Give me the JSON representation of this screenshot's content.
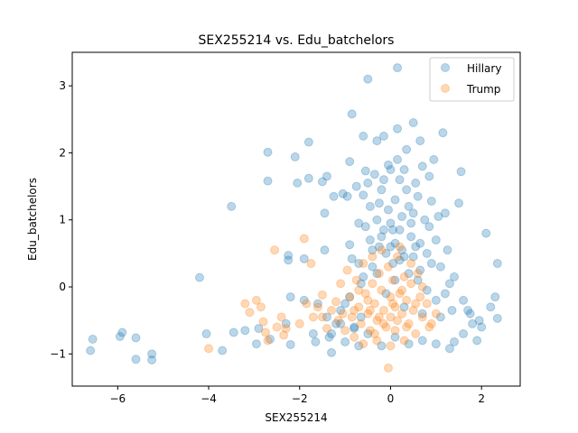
{
  "chart_data": {
    "type": "scatter",
    "title": "SEX255214 vs. Edu_batchelors",
    "xlabel": "SEX255214",
    "ylabel": "Edu_batchelors",
    "xlim": [
      -7.0,
      2.85
    ],
    "ylim": [
      -1.48,
      3.5
    ],
    "xticks": [
      -6,
      -4,
      -2,
      0,
      2
    ],
    "yticks": [
      -1,
      0,
      1,
      2,
      3
    ],
    "legend": "top-right",
    "grid": false,
    "series": [
      {
        "name": "Hillary",
        "color": "#1f77b4",
        "points": [
          [
            -6.6,
            -0.95
          ],
          [
            -6.55,
            -0.78
          ],
          [
            -5.95,
            -0.74
          ],
          [
            -5.9,
            -0.68
          ],
          [
            -5.6,
            -0.76
          ],
          [
            -5.6,
            -1.08
          ],
          [
            -5.25,
            -1.0
          ],
          [
            -5.25,
            -1.09
          ],
          [
            -4.2,
            0.14
          ],
          [
            -4.05,
            -0.7
          ],
          [
            -3.7,
            -0.95
          ],
          [
            -3.5,
            1.2
          ],
          [
            -3.45,
            -0.68
          ],
          [
            -3.2,
            -0.65
          ],
          [
            -2.95,
            -0.85
          ],
          [
            -2.9,
            -0.62
          ],
          [
            -2.7,
            2.01
          ],
          [
            -2.7,
            1.58
          ],
          [
            -2.65,
            -0.78
          ],
          [
            -2.3,
            -0.55
          ],
          [
            -2.25,
            0.47
          ],
          [
            -2.25,
            0.4
          ],
          [
            -2.2,
            -0.86
          ],
          [
            -2.1,
            1.94
          ],
          [
            -2.05,
            1.55
          ],
          [
            -1.9,
            0.42
          ],
          [
            -1.8,
            2.16
          ],
          [
            -1.8,
            1.62
          ],
          [
            -1.7,
            -0.7
          ],
          [
            -1.65,
            -0.82
          ],
          [
            -1.5,
            1.57
          ],
          [
            -1.45,
            1.1
          ],
          [
            -1.45,
            0.55
          ],
          [
            -1.4,
            1.65
          ],
          [
            -1.35,
            -0.75
          ],
          [
            -1.3,
            -0.98
          ],
          [
            -1.25,
            1.35
          ],
          [
            -1.2,
            -0.55
          ],
          [
            -1.1,
            -0.35
          ],
          [
            -1.05,
            1.39
          ],
          [
            -1.0,
            -0.82
          ],
          [
            -0.95,
            1.35
          ],
          [
            -0.9,
            1.87
          ],
          [
            -0.9,
            0.63
          ],
          [
            -0.85,
            2.58
          ],
          [
            -0.85,
            0.42
          ],
          [
            -0.8,
            -0.6
          ],
          [
            -0.75,
            1.5
          ],
          [
            -0.7,
            0.95
          ],
          [
            -0.7,
            -0.88
          ],
          [
            -0.65,
            0.05
          ],
          [
            -0.6,
            2.25
          ],
          [
            -0.6,
            1.37
          ],
          [
            -0.55,
            1.73
          ],
          [
            -0.5,
            3.1
          ],
          [
            -0.5,
            1.55
          ],
          [
            -0.45,
            1.2
          ],
          [
            -0.45,
            0.7
          ],
          [
            -0.4,
            0.3
          ],
          [
            -0.35,
            1.68
          ],
          [
            -0.3,
            2.18
          ],
          [
            -0.3,
            1.0
          ],
          [
            -0.25,
            0.6
          ],
          [
            -0.2,
            1.45
          ],
          [
            -0.15,
            2.25
          ],
          [
            -0.15,
            0.85
          ],
          [
            -0.1,
            0.5
          ],
          [
            -0.05,
            1.82
          ],
          [
            -0.05,
            1.15
          ],
          [
            0.0,
            1.75
          ],
          [
            0.0,
            0.95
          ],
          [
            0.05,
            0.35
          ],
          [
            0.1,
            1.3
          ],
          [
            0.1,
            0.65
          ],
          [
            0.15,
            3.27
          ],
          [
            0.15,
            2.36
          ],
          [
            0.2,
            1.6
          ],
          [
            0.2,
            0.85
          ],
          [
            0.25,
            1.05
          ],
          [
            0.3,
            1.75
          ],
          [
            0.3,
            0.45
          ],
          [
            0.35,
            2.05
          ],
          [
            0.35,
            1.45
          ],
          [
            0.4,
            1.2
          ],
          [
            0.45,
            0.75
          ],
          [
            0.5,
            2.45
          ],
          [
            0.5,
            1.1
          ],
          [
            0.55,
            0.6
          ],
          [
            0.6,
            1.35
          ],
          [
            0.65,
            2.18
          ],
          [
            0.65,
            0.25
          ],
          [
            0.7,
            1.8
          ],
          [
            0.75,
            1.0
          ],
          [
            0.8,
            0.5
          ],
          [
            0.85,
            1.65
          ],
          [
            0.9,
            1.28
          ],
          [
            0.95,
            1.9
          ],
          [
            1.0,
            0.7
          ],
          [
            1.05,
            1.05
          ],
          [
            1.1,
            0.3
          ],
          [
            1.15,
            2.3
          ],
          [
            1.2,
            1.1
          ],
          [
            1.25,
            0.55
          ],
          [
            1.3,
            0.05
          ],
          [
            1.5,
            1.25
          ],
          [
            1.55,
            1.72
          ],
          [
            1.6,
            -0.7
          ],
          [
            1.7,
            -0.35
          ],
          [
            1.8,
            -0.55
          ],
          [
            1.95,
            -0.5
          ],
          [
            2.1,
            0.8
          ],
          [
            2.3,
            -0.15
          ],
          [
            2.35,
            0.35
          ],
          [
            2.35,
            -0.47
          ],
          [
            2.2,
            -0.3
          ],
          [
            1.9,
            -0.8
          ],
          [
            1.4,
            -0.82
          ],
          [
            1.3,
            -0.92
          ],
          [
            1.0,
            -0.85
          ],
          [
            0.7,
            -0.8
          ],
          [
            0.4,
            -0.85
          ],
          [
            0.1,
            -0.75
          ],
          [
            -0.2,
            -0.88
          ],
          [
            -0.5,
            -0.7
          ],
          [
            -0.8,
            -0.62
          ],
          [
            -1.1,
            -0.55
          ],
          [
            -1.4,
            -0.45
          ],
          [
            -1.6,
            -0.25
          ],
          [
            -1.9,
            -0.2
          ],
          [
            -2.2,
            -0.15
          ],
          [
            -0.6,
            0.15
          ],
          [
            -0.4,
            0.55
          ],
          [
            -0.2,
            0.75
          ],
          [
            0.0,
            0.6
          ],
          [
            0.2,
            0.4
          ],
          [
            0.4,
            0.2
          ],
          [
            0.6,
            0.1
          ],
          [
            0.8,
            -0.05
          ],
          [
            1.0,
            -0.2
          ],
          [
            1.2,
            -0.1
          ],
          [
            1.4,
            0.15
          ],
          [
            -0.3,
            0.2
          ],
          [
            0.1,
            0.1
          ],
          [
            0.5,
            0.45
          ],
          [
            0.9,
            0.35
          ],
          [
            -0.7,
            0.35
          ],
          [
            -0.1,
            -0.1
          ],
          [
            0.3,
            -0.3
          ],
          [
            0.7,
            -0.4
          ],
          [
            1.1,
            -0.45
          ],
          [
            -0.9,
            -0.15
          ],
          [
            1.6,
            -0.2
          ],
          [
            0.45,
            0.95
          ],
          [
            0.05,
            0.85
          ],
          [
            -0.25,
            1.25
          ],
          [
            0.65,
            0.65
          ],
          [
            0.25,
            0.55
          ],
          [
            -0.55,
            0.9
          ],
          [
            0.85,
            0.9
          ],
          [
            -0.15,
            1.6
          ],
          [
            0.55,
            1.55
          ],
          [
            0.15,
            1.9
          ],
          [
            1.35,
            -0.35
          ],
          [
            1.75,
            -0.4
          ],
          [
            2.0,
            -0.6
          ],
          [
            -1.3,
            -0.7
          ],
          [
            -1.0,
            -0.25
          ],
          [
            -0.65,
            -0.45
          ]
        ]
      },
      {
        "name": "Trump",
        "color": "#ff7f0e",
        "points": [
          [
            -4.0,
            -0.92
          ],
          [
            -3.2,
            -0.25
          ],
          [
            -3.1,
            -0.38
          ],
          [
            -2.95,
            -0.2
          ],
          [
            -2.85,
            -0.3
          ],
          [
            -2.8,
            -0.52
          ],
          [
            -2.75,
            -0.68
          ],
          [
            -2.7,
            -0.8
          ],
          [
            -2.55,
            0.55
          ],
          [
            -2.5,
            -0.6
          ],
          [
            -2.4,
            -0.45
          ],
          [
            -2.35,
            -0.72
          ],
          [
            -2.3,
            -0.62
          ],
          [
            -2.0,
            -0.55
          ],
          [
            -1.9,
            0.72
          ],
          [
            -1.85,
            -0.25
          ],
          [
            -1.75,
            0.35
          ],
          [
            -1.7,
            -0.45
          ],
          [
            -1.6,
            -0.3
          ],
          [
            -1.5,
            -0.12
          ],
          [
            -1.5,
            -0.45
          ],
          [
            -1.4,
            -0.62
          ],
          [
            -1.3,
            -0.35
          ],
          [
            -1.2,
            -0.22
          ],
          [
            -1.15,
            -0.5
          ],
          [
            -1.1,
            0.05
          ],
          [
            -1.05,
            -0.4
          ],
          [
            -1.0,
            -0.65
          ],
          [
            -0.95,
            0.25
          ],
          [
            -0.9,
            -0.15
          ],
          [
            -0.85,
            -0.45
          ],
          [
            -0.8,
            -0.75
          ],
          [
            -0.75,
            0.1
          ],
          [
            -0.7,
            -0.3
          ],
          [
            -0.65,
            -0.55
          ],
          [
            -0.6,
            0.35
          ],
          [
            -0.55,
            -0.1
          ],
          [
            -0.5,
            -0.4
          ],
          [
            -0.45,
            -0.65
          ],
          [
            -0.4,
            0.05
          ],
          [
            -0.35,
            -0.25
          ],
          [
            -0.3,
            -0.5
          ],
          [
            -0.25,
            0.2
          ],
          [
            -0.2,
            -0.05
          ],
          [
            -0.15,
            -0.35
          ],
          [
            -0.1,
            -0.6
          ],
          [
            -0.05,
            0.3
          ],
          [
            0.0,
            -0.15
          ],
          [
            0.0,
            -0.45
          ],
          [
            0.05,
            0.1
          ],
          [
            0.1,
            -0.3
          ],
          [
            0.1,
            -0.65
          ],
          [
            0.15,
            0.45
          ],
          [
            0.2,
            -0.1
          ],
          [
            0.25,
            -0.4
          ],
          [
            0.3,
            0.15
          ],
          [
            0.35,
            -0.2
          ],
          [
            0.4,
            -0.55
          ],
          [
            0.45,
            0.05
          ],
          [
            0.5,
            -0.35
          ],
          [
            0.55,
            -0.7
          ],
          [
            0.6,
            0.2
          ],
          [
            0.65,
            -0.15
          ],
          [
            0.7,
            -0.45
          ],
          [
            0.8,
            -0.25
          ],
          [
            0.9,
            -0.55
          ],
          [
            1.0,
            -0.4
          ],
          [
            -0.05,
            -1.21
          ],
          [
            0.0,
            -0.88
          ],
          [
            -0.3,
            -0.8
          ],
          [
            -0.6,
            -0.85
          ],
          [
            0.3,
            -0.8
          ],
          [
            -0.2,
            0.55
          ],
          [
            0.2,
            0.6
          ],
          [
            -0.4,
            0.45
          ],
          [
            0.45,
            0.35
          ],
          [
            -0.15,
            -0.55
          ],
          [
            0.15,
            -0.5
          ],
          [
            -0.35,
            -0.7
          ],
          [
            0.35,
            -0.6
          ],
          [
            -0.5,
            -0.2
          ],
          [
            0.05,
            -0.25
          ],
          [
            -0.25,
            -0.45
          ],
          [
            0.25,
            -0.05
          ],
          [
            -0.7,
            -0.05
          ],
          [
            0.55,
            -0.25
          ],
          [
            -0.45,
            -0.35
          ],
          [
            0.7,
            0.0
          ],
          [
            -0.8,
            -0.35
          ],
          [
            0.85,
            -0.6
          ]
        ]
      }
    ]
  }
}
